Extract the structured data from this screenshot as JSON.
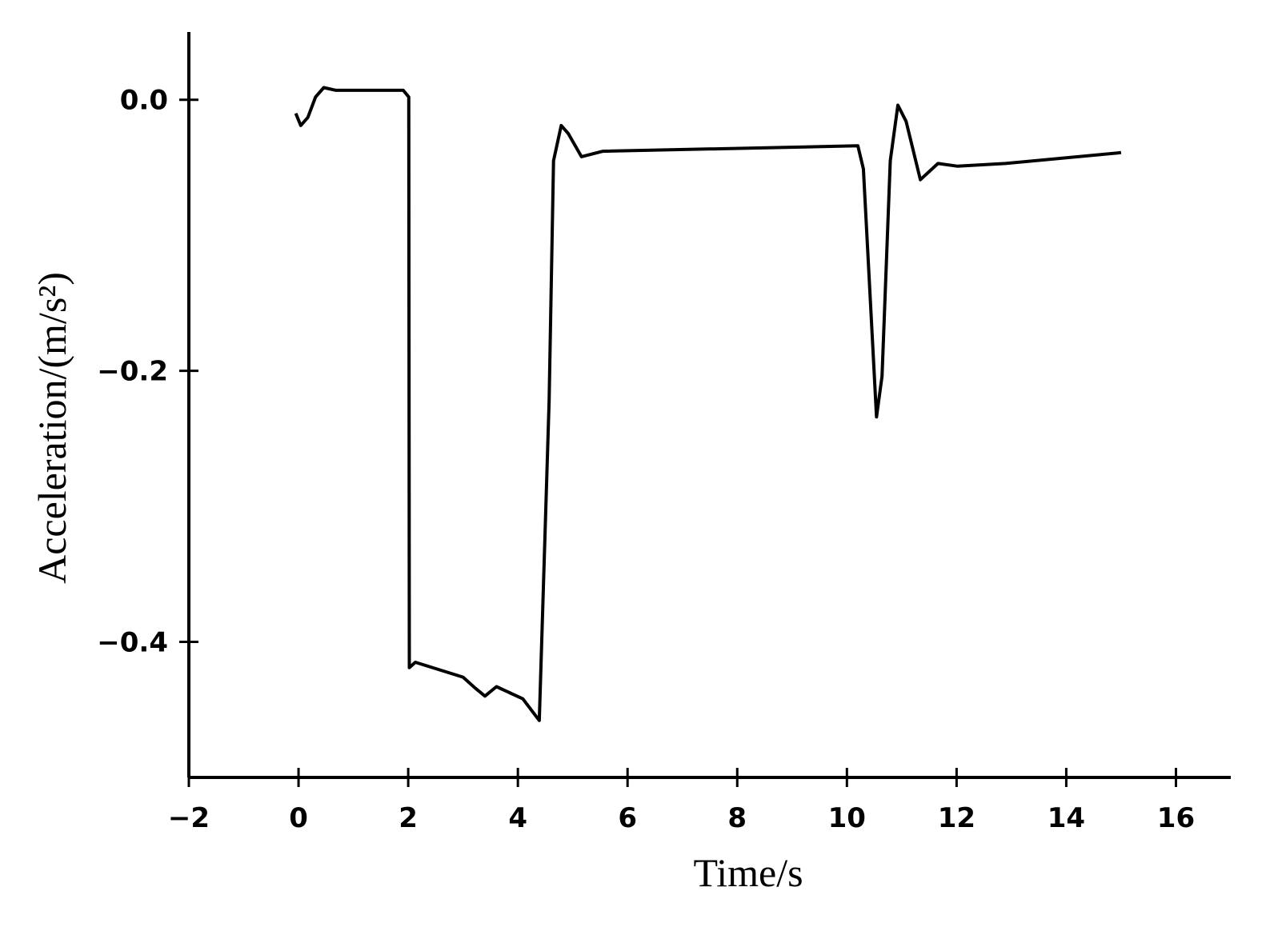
{
  "chart_data": {
    "type": "line",
    "xlabel": "Time/s",
    "ylabel": "Acceleration/(m/s²)",
    "x": [
      -0.05,
      0.04,
      0.17,
      0.31,
      0.46,
      0.68,
      1.91,
      2.01,
      2.02,
      2.13,
      3.0,
      3.22,
      3.4,
      3.61,
      4.09,
      4.39,
      4.57,
      4.65,
      4.79,
      4.92,
      5.16,
      5.55,
      10.2,
      10.3,
      10.54,
      10.64,
      10.79,
      10.93,
      11.08,
      11.34,
      11.66,
      12.02,
      12.89,
      15.0
    ],
    "values": [
      -0.01,
      -0.019,
      -0.013,
      0.002,
      0.009,
      0.007,
      0.007,
      0.002,
      -0.419,
      -0.415,
      -0.426,
      -0.434,
      -0.44,
      -0.433,
      -0.442,
      -0.458,
      -0.222,
      -0.045,
      -0.019,
      -0.025,
      -0.042,
      -0.038,
      -0.034,
      -0.051,
      -0.234,
      -0.204,
      -0.045,
      -0.004,
      -0.016,
      -0.059,
      -0.047,
      -0.049,
      -0.047,
      -0.039
    ],
    "color": "#000000",
    "xlim": [
      -2,
      17
    ],
    "xticks": [
      {
        "value": -2,
        "label": "−2"
      },
      0,
      2,
      4,
      6,
      8,
      10,
      12,
      14,
      16
    ],
    "ylim": [
      -0.5,
      0.05
    ],
    "yticks": [
      {
        "value": 0,
        "label": "0.0"
      },
      {
        "value": -0.2,
        "label": "−0.2"
      },
      {
        "value": -0.4,
        "label": "−0.4"
      }
    ],
    "grid": false
  }
}
